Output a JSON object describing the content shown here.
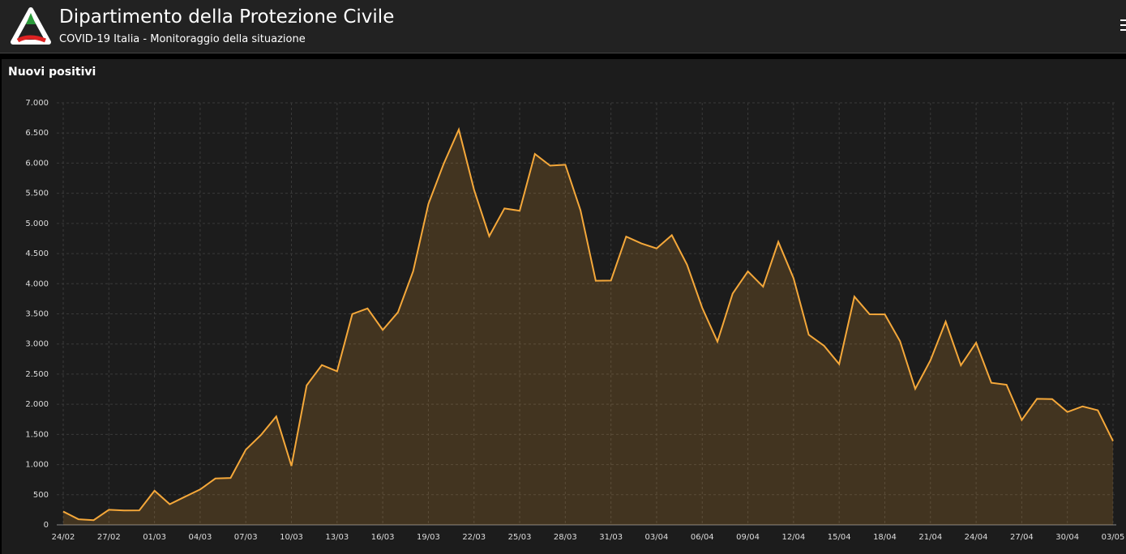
{
  "header": {
    "title": "Dipartimento della Protezione Civile",
    "subtitle": "COVID-19 Italia - Monitoraggio della situazione"
  },
  "chart_data": {
    "type": "area",
    "title": "Nuovi positivi",
    "color": "#f5a83a",
    "grid": true,
    "categories": [
      "24/02",
      null,
      null,
      "27/02",
      null,
      null,
      "01/03",
      null,
      null,
      "04/03",
      null,
      null,
      "07/03",
      null,
      null,
      "10/03",
      null,
      null,
      "13/03",
      null,
      null,
      "16/03",
      null,
      null,
      "19/03",
      null,
      null,
      "22/03",
      null,
      null,
      "25/03",
      null,
      null,
      "28/03",
      null,
      null,
      "31/03",
      null,
      null,
      "03/04",
      null,
      null,
      "06/04",
      null,
      null,
      "09/04",
      null,
      null,
      "12/04",
      null,
      null,
      "15/04",
      null,
      null,
      "18/04",
      null,
      null,
      "21/04",
      null,
      null,
      "24/04",
      null,
      null,
      "27/04",
      null,
      null,
      "30/04",
      null,
      null,
      "03/05"
    ],
    "values": [
      221,
      93,
      78,
      250,
      238,
      240,
      566,
      342,
      466,
      587,
      769,
      778,
      1247,
      1492,
      1797,
      977,
      2313,
      2651,
      2547,
      3497,
      3590,
      3233,
      3526,
      4207,
      5322,
      5986,
      6557,
      5560,
      4789,
      5249,
      5210,
      6153,
      5959,
      5974,
      5217,
      4050,
      4053,
      4782,
      4668,
      4585,
      4805,
      4316,
      3599,
      3039,
      3836,
      4204,
      3951,
      4694,
      4092,
      3153,
      2972,
      2667,
      3786,
      3493,
      3491,
      3047,
      2256,
      2729,
      3370,
      2646,
      3021,
      2357,
      2324,
      1739,
      2091,
      2086,
      1872,
      1965,
      1900,
      1389
    ],
    "ylim": [
      0,
      7000
    ],
    "yticks": [
      0,
      500,
      {
        "value": 1000,
        "label": "1.000"
      },
      {
        "value": 1500,
        "label": "1.500"
      },
      {
        "value": 2000,
        "label": "2.000"
      },
      {
        "value": 2500,
        "label": "2.500"
      },
      {
        "value": 3000,
        "label": "3.000"
      },
      {
        "value": 3500,
        "label": "3.500"
      },
      {
        "value": 4000,
        "label": "4.000"
      },
      {
        "value": 4500,
        "label": "4.500"
      },
      {
        "value": 5000,
        "label": "5.000"
      },
      {
        "value": 5500,
        "label": "5.500"
      },
      {
        "value": 6000,
        "label": "6.000"
      },
      {
        "value": 6500,
        "label": "6.500"
      },
      {
        "value": 7000,
        "label": "7.000"
      }
    ]
  }
}
